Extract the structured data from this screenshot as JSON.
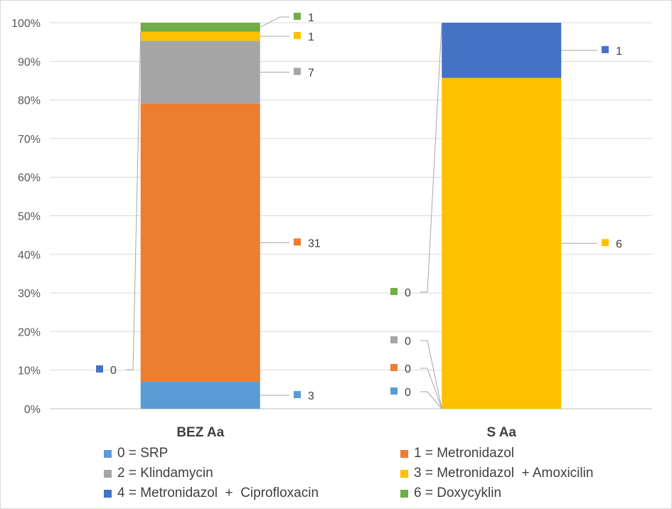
{
  "chart_data": {
    "type": "bar",
    "stacked": "percent",
    "categories": [
      "BEZ Aa",
      "S Aa"
    ],
    "yticks": [
      "0%",
      "10%",
      "20%",
      "30%",
      "40%",
      "50%",
      "60%",
      "70%",
      "80%",
      "90%",
      "100%"
    ],
    "ylim": [
      0,
      100
    ],
    "grid": true,
    "legend_position": "bottom",
    "series": [
      {
        "name": "0 = SRP",
        "color": "#5b9bd5",
        "values": [
          3,
          0
        ]
      },
      {
        "name": "1 = Metronidazol",
        "color": "#ed7d31",
        "values": [
          31,
          0
        ]
      },
      {
        "name": "2 = Klindamycin",
        "color": "#a5a5a5",
        "values": [
          7,
          0
        ]
      },
      {
        "name": "3 = Metronidazol  + Amoxicilin",
        "color": "#ffc000",
        "values": [
          1,
          6
        ]
      },
      {
        "name": "4 = Metronidazol  +  Ciprofloxacin",
        "color": "#4472c4",
        "values": [
          0,
          1
        ]
      },
      {
        "name": "6 = Doxycyklin",
        "color": "#70ad47",
        "values": [
          1,
          0
        ]
      }
    ]
  }
}
